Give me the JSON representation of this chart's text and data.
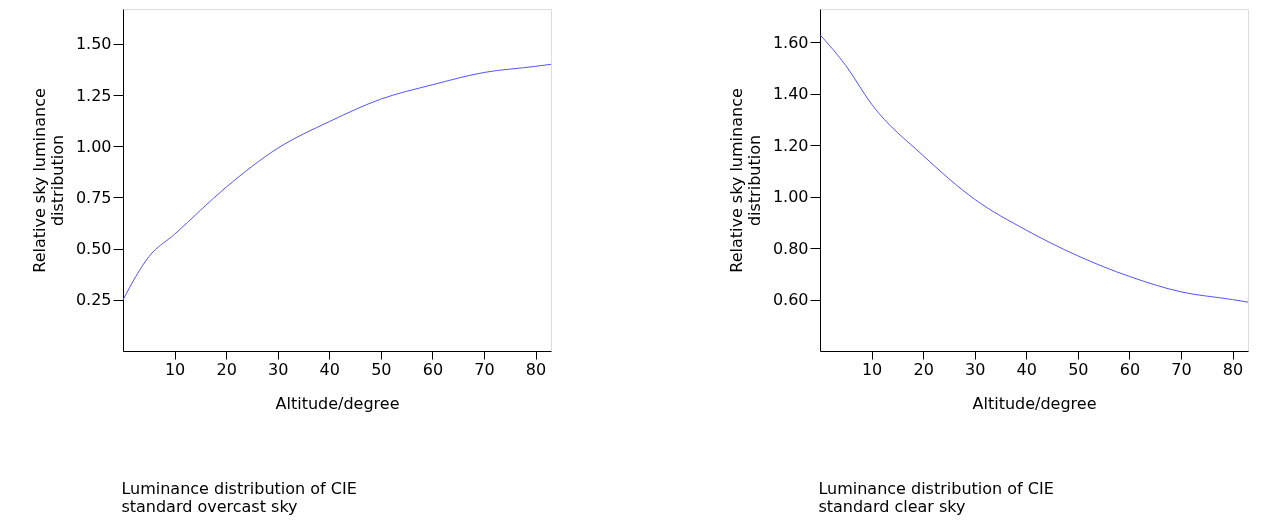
{
  "chart_data": [
    {
      "type": "line",
      "title": "Luminance distribution of CIE standard overcast sky",
      "xlabel": "Altitude/degree",
      "ylabel": "Relative sky luminance distribution",
      "x": [
        0,
        5,
        10,
        20,
        30,
        40,
        50,
        60,
        70,
        80,
        83
      ],
      "series": [
        {
          "color": "#5555ff",
          "values": [
            0.25,
            0.46,
            0.57,
            0.8,
            0.99,
            1.12,
            1.23,
            1.3,
            1.36,
            1.39,
            1.4
          ]
        }
      ],
      "xlim": [
        0,
        83
      ],
      "xticks": [
        10,
        20,
        30,
        40,
        50,
        60,
        70,
        80
      ],
      "ylim": [
        0,
        1.67
      ],
      "yticks": [
        {
          "value": 0.25,
          "label": "0.25"
        },
        {
          "value": 0.5,
          "label": "0.50"
        },
        {
          "value": 0.75,
          "label": "0.75"
        },
        {
          "value": 1.0,
          "label": "1.00"
        },
        {
          "value": 1.25,
          "label": "1.25"
        },
        {
          "value": 1.5,
          "label": "1.50"
        }
      ],
      "grid": false
    },
    {
      "type": "line",
      "title": "Luminance distribution of CIE standard clear sky",
      "xlabel": "Altitude/degree",
      "ylabel": "Relative sky luminance distribution",
      "x": [
        0,
        5,
        10,
        20,
        30,
        40,
        50,
        60,
        70,
        80,
        83
      ],
      "series": [
        {
          "color": "#5555ff",
          "values": [
            1.63,
            1.51,
            1.36,
            1.16,
            0.99,
            0.87,
            0.77,
            0.69,
            0.63,
            0.6,
            0.59
          ]
        }
      ],
      "xlim": [
        0,
        83
      ],
      "xticks": [
        10,
        20,
        30,
        40,
        50,
        60,
        70,
        80
      ],
      "ylim": [
        0.4,
        1.73
      ],
      "yticks": [
        {
          "value": 0.6,
          "label": "0.60"
        },
        {
          "value": 0.8,
          "label": "0.80"
        },
        {
          "value": 1.0,
          "label": "1.00"
        },
        {
          "value": 1.2,
          "label": "1.20"
        },
        {
          "value": 1.4,
          "label": "1.40"
        },
        {
          "value": 1.6,
          "label": "1.60"
        }
      ],
      "grid": false
    }
  ]
}
